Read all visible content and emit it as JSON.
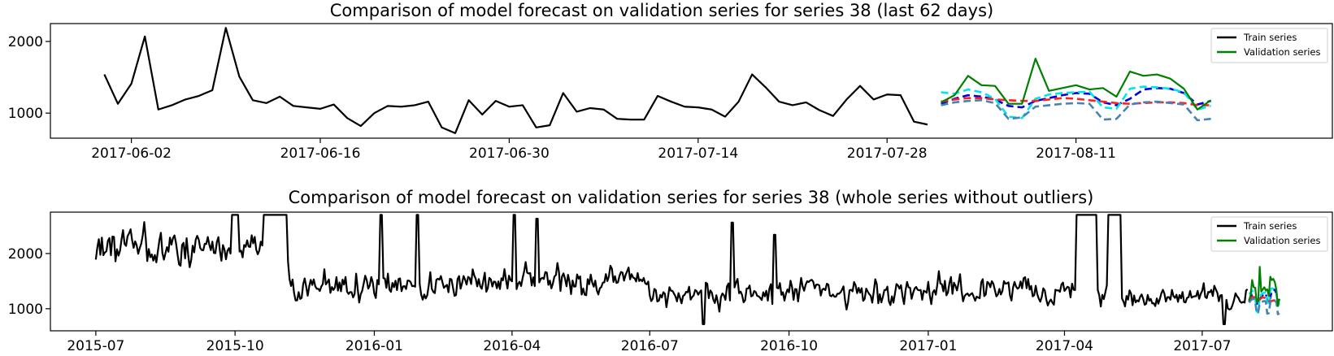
{
  "chart_data": [
    {
      "type": "line",
      "title": "Comparison of model forecast on validation series for series 38 (last 62 days)",
      "x_kind": "date",
      "xlim": [
        "2017-05-27",
        "2017-08-30"
      ],
      "ylim": [
        650,
        2250
      ],
      "yticks": [
        1000,
        2000
      ],
      "xticks": [
        "2017-06-02",
        "2017-06-16",
        "2017-06-30",
        "2017-07-14",
        "2017-07-28",
        "2017-08-11"
      ],
      "legend_position": "top-right",
      "legend": [
        "Train series",
        "Validation series"
      ],
      "series": [
        {
          "name": "Train series",
          "color": "#000000",
          "style": "solid",
          "start": "2017-05-31",
          "values": [
            1540,
            1130,
            1410,
            2070,
            1050,
            1110,
            1190,
            1240,
            1320,
            2190,
            1510,
            1180,
            1140,
            1230,
            1100,
            1080,
            1060,
            1120,
            930,
            820,
            1000,
            1100,
            1090,
            1110,
            1160,
            800,
            720,
            1180,
            980,
            1170,
            1090,
            1110,
            800,
            830,
            1280,
            1020,
            1070,
            1050,
            920,
            910,
            910,
            1240,
            1160,
            1090,
            1080,
            1050,
            950,
            1160,
            1540,
            1360,
            1160,
            1110,
            1150,
            1040,
            960,
            1190,
            1380,
            1190,
            1260,
            1250,
            880,
            840
          ]
        },
        {
          "name": "Validation series",
          "color": "#008000",
          "style": "solid",
          "start": "2017-08-01",
          "values": [
            1150,
            1250,
            1520,
            1390,
            1380,
            1130,
            1130,
            1760,
            1310,
            1350,
            1390,
            1330,
            1350,
            1230,
            1580,
            1520,
            1540,
            1480,
            1340,
            1050,
            1180
          ]
        },
        {
          "color": "#0000e0",
          "style": "dashed",
          "start": "2017-08-01",
          "values": [
            1130,
            1200,
            1250,
            1230,
            1190,
            1100,
            1080,
            1170,
            1210,
            1250,
            1280,
            1270,
            1150,
            1110,
            1200,
            1330,
            1350,
            1340,
            1280,
            1120,
            1170
          ]
        },
        {
          "color": "#00e5e5",
          "style": "dashed",
          "start": "2017-08-01",
          "values": [
            1290,
            1270,
            1330,
            1290,
            1200,
            950,
            930,
            1200,
            1260,
            1280,
            1290,
            1300,
            1080,
            1060,
            1340,
            1370,
            1360,
            1340,
            1290,
            1050,
            1100
          ]
        },
        {
          "color": "#ff2020",
          "style": "dashed",
          "start": "2017-08-01",
          "values": [
            1160,
            1190,
            1210,
            1210,
            1190,
            1180,
            1170,
            1170,
            1190,
            1210,
            1200,
            1180,
            1160,
            1140,
            1130,
            1140,
            1150,
            1150,
            1140,
            1110,
            1110
          ]
        },
        {
          "color": "#4682b4",
          "style": "dashed",
          "start": "2017-08-01",
          "values": [
            1110,
            1150,
            1170,
            1180,
            1140,
            920,
            940,
            1090,
            1110,
            1130,
            1140,
            1130,
            910,
            920,
            1120,
            1150,
            1160,
            1140,
            1120,
            900,
            920
          ]
        }
      ]
    },
    {
      "type": "line",
      "title": "Comparison of model forecast on validation series for series 38 (whole series without outliers)",
      "x_kind": "date",
      "xlim": [
        "2015-06-01",
        "2017-09-25"
      ],
      "ylim": [
        600,
        2750
      ],
      "yticks": [
        1000,
        2000
      ],
      "xticks": [
        "2015-07",
        "2015-10",
        "2016-01",
        "2016-04",
        "2016-07",
        "2016-10",
        "2017-01",
        "2017-04",
        "2017-07"
      ],
      "legend_position": "top-right",
      "legend": [
        "Train series",
        "Validation series"
      ],
      "series": [
        {
          "name": "Train series",
          "color": "#000000",
          "style": "solid",
          "start": "2015-07-01",
          "end": "2017-07-31",
          "seed": 38,
          "segments": [
            {
              "from": "2015-07-01",
              "to": "2015-11-04",
              "mean": 2100,
              "amp": 420
            },
            {
              "from": "2015-11-05",
              "to": "2016-02-15",
              "mean": 1400,
              "amp": 330
            },
            {
              "from": "2016-02-16",
              "to": "2016-06-30",
              "mean": 1480,
              "amp": 330
            },
            {
              "from": "2016-07-01",
              "to": "2016-12-31",
              "mean": 1250,
              "amp": 300
            },
            {
              "from": "2017-01-01",
              "to": "2017-04-30",
              "mean": 1350,
              "amp": 330
            },
            {
              "from": "2017-05-01",
              "to": "2017-07-31",
              "mean": 1200,
              "amp": 230
            }
          ],
          "spikes": [
            {
              "from": "2015-09-29",
              "to": "2015-10-03",
              "value": 2700
            },
            {
              "from": "2015-10-20",
              "to": "2015-11-04",
              "value": 2700
            },
            {
              "from": "2016-01-05",
              "to": "2016-01-06",
              "value": 2700
            },
            {
              "from": "2016-01-29",
              "to": "2016-01-30",
              "value": 2700
            },
            {
              "from": "2016-04-02",
              "to": "2016-04-03",
              "value": 2700
            },
            {
              "from": "2016-04-17",
              "to": "2016-04-18",
              "value": 2630
            },
            {
              "from": "2016-08-24",
              "to": "2016-08-25",
              "value": 2560
            },
            {
              "from": "2016-09-21",
              "to": "2016-09-22",
              "value": 2340
            },
            {
              "from": "2017-04-09",
              "to": "2017-04-22",
              "value": 2700
            },
            {
              "from": "2017-04-30",
              "to": "2017-05-08",
              "value": 2700
            },
            {
              "from": "2016-08-05",
              "to": "2016-08-06",
              "value": 720
            },
            {
              "from": "2017-07-15",
              "to": "2017-07-16",
              "value": 720
            }
          ]
        },
        {
          "name": "Validation series",
          "color": "#008000",
          "style": "solid",
          "start": "2017-08-01",
          "values": [
            1150,
            1250,
            1520,
            1390,
            1380,
            1130,
            1130,
            1760,
            1310,
            1350,
            1390,
            1330,
            1350,
            1230,
            1580,
            1520,
            1540,
            1480,
            1340,
            1050,
            1180
          ]
        },
        {
          "color": "#0000e0",
          "style": "dashed",
          "start": "2017-08-01",
          "values": [
            1130,
            1200,
            1250,
            1230,
            1190,
            1100,
            1080,
            1170,
            1210,
            1250,
            1280,
            1270,
            1150,
            1110,
            1200,
            1330,
            1350,
            1340,
            1280,
            1120,
            1170
          ]
        },
        {
          "color": "#00e5e5",
          "style": "dashed",
          "start": "2017-08-01",
          "values": [
            1290,
            1270,
            1330,
            1290,
            1200,
            950,
            930,
            1200,
            1260,
            1280,
            1290,
            1300,
            1080,
            1060,
            1340,
            1370,
            1360,
            1340,
            1290,
            1050,
            1100
          ]
        },
        {
          "color": "#ff2020",
          "style": "dashed",
          "start": "2017-08-01",
          "values": [
            1160,
            1190,
            1210,
            1210,
            1190,
            1180,
            1170,
            1170,
            1190,
            1210,
            1200,
            1180,
            1160,
            1140,
            1130,
            1140,
            1150,
            1150,
            1140,
            1110,
            1110
          ]
        },
        {
          "color": "#4682b4",
          "style": "dashed",
          "start": "2017-08-01",
          "values": [
            1110,
            1150,
            1170,
            1180,
            1140,
            920,
            940,
            1090,
            1110,
            1130,
            1140,
            1130,
            910,
            920,
            1120,
            1150,
            1160,
            1140,
            1120,
            900,
            920
          ]
        }
      ]
    }
  ]
}
